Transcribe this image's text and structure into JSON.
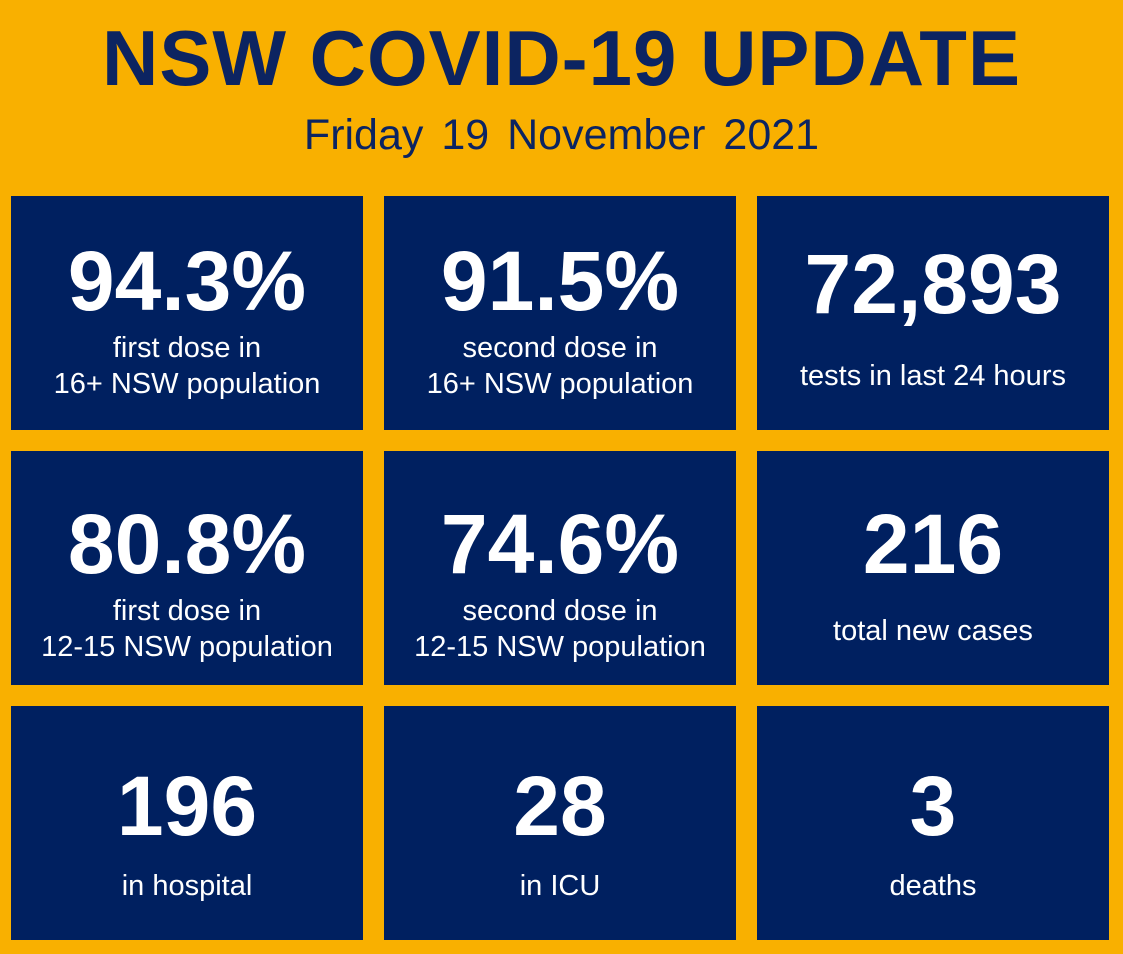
{
  "header": {
    "title": "NSW COVID-19 UPDATE",
    "date": "Friday 19 November 2021"
  },
  "stats": {
    "first_dose_16": {
      "value": "94.3%",
      "line1": "first dose in",
      "line2": "16+ NSW population"
    },
    "second_dose_16": {
      "value": "91.5%",
      "line1": "second dose in",
      "line2": "16+ NSW population"
    },
    "tests": {
      "value": "72,893",
      "label": "tests in last 24 hours"
    },
    "first_dose_12_15": {
      "value": "80.8%",
      "line1": "first dose in",
      "line2": "12-15 NSW population"
    },
    "second_dose_12_15": {
      "value": "74.6%",
      "line1": "second dose in",
      "line2": "12-15 NSW population"
    },
    "new_cases": {
      "value": "216",
      "label": "total new cases"
    },
    "hospital": {
      "value": "196",
      "label": "in hospital"
    },
    "icu": {
      "value": "28",
      "label": "in ICU"
    },
    "deaths": {
      "value": "3",
      "label": "deaths"
    }
  },
  "colors": {
    "background": "#f9b000",
    "tile": "#002060",
    "title_text": "#0c2461",
    "tile_text": "#ffffff"
  }
}
